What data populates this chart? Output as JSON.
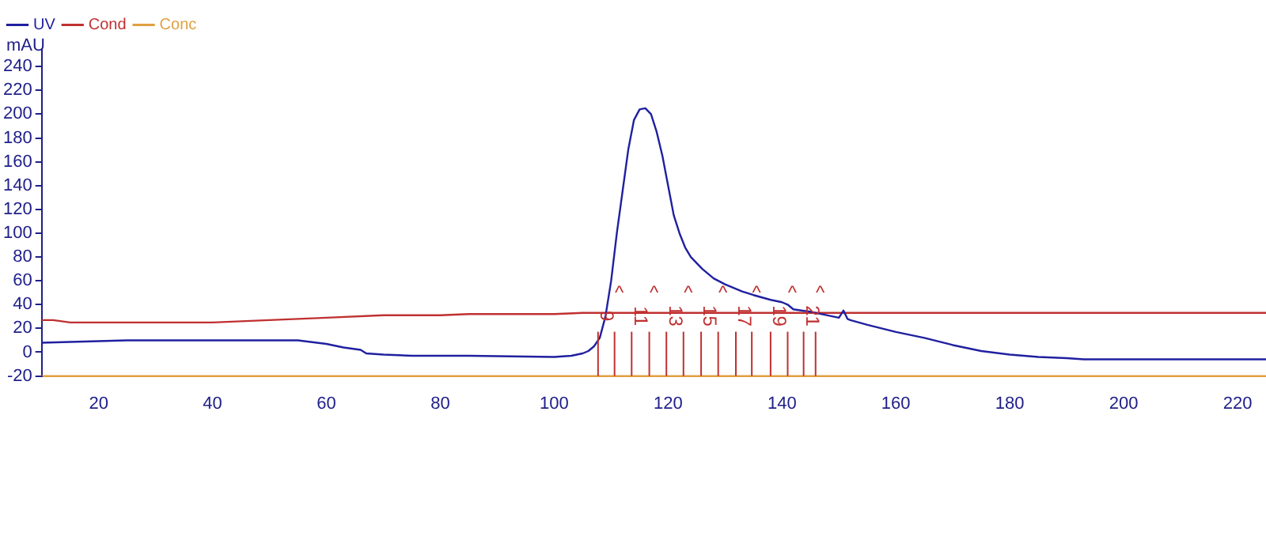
{
  "chart_data": {
    "type": "line",
    "ylabel": "mAU",
    "xlim": [
      10,
      225
    ],
    "ylim": [
      -20,
      255
    ],
    "xticks": [
      20,
      40,
      60,
      80,
      100,
      120,
      140,
      160,
      180,
      200,
      220
    ],
    "yticks": [
      -20,
      0,
      20,
      40,
      60,
      80,
      100,
      120,
      140,
      160,
      180,
      200,
      220,
      240
    ],
    "grid": false,
    "legend": "top left",
    "marker": "none",
    "line_style": "solid",
    "series": [
      {
        "name": "UV",
        "color": "#2020a0",
        "x": [
          10,
          25,
          50,
          55,
          60,
          63,
          66,
          67,
          70,
          75,
          85,
          100,
          103,
          105,
          106,
          107,
          108,
          109,
          110,
          111,
          112,
          113,
          114,
          115,
          116,
          117,
          118,
          119,
          120,
          121,
          122,
          123,
          124,
          126,
          128,
          130,
          133,
          135,
          138,
          140,
          141,
          142,
          145,
          148,
          150,
          150.8,
          151.5,
          152,
          155,
          160,
          165,
          170,
          175,
          180,
          185,
          190,
          193,
          200,
          225
        ],
        "values": [
          8,
          10,
          10,
          10,
          7,
          4,
          2,
          -1,
          -2,
          -3,
          -3,
          -4,
          -3,
          -1,
          1,
          5,
          12,
          30,
          60,
          100,
          135,
          170,
          195,
          204,
          205,
          200,
          185,
          165,
          140,
          115,
          100,
          88,
          80,
          70,
          62,
          57,
          51,
          48,
          44,
          42,
          40,
          36,
          34,
          31,
          29,
          35,
          28,
          27,
          23,
          17,
          12,
          6,
          1,
          -2,
          -4,
          -5,
          -6,
          -6,
          -6
        ]
      },
      {
        "name": "Cond",
        "color": "#c03030",
        "x": [
          10,
          12,
          15,
          40,
          45,
          50,
          55,
          60,
          70,
          80,
          85,
          100,
          105,
          107,
          225
        ],
        "values": [
          27,
          27,
          25,
          25,
          26,
          27,
          28,
          29,
          31,
          31,
          32,
          32,
          33,
          33,
          33
        ]
      },
      {
        "name": "Conc",
        "color": "#e0a040",
        "x": [
          10,
          225
        ],
        "values": [
          -20,
          -20
        ]
      }
    ],
    "ref_lines": [
      {
        "axis": "x",
        "value": 107.7,
        "color": "#c03030"
      },
      {
        "axis": "x",
        "value": 110.6,
        "color": "#c03030"
      },
      {
        "axis": "x",
        "value": 113.6,
        "color": "#c03030"
      },
      {
        "axis": "x",
        "value": 116.7,
        "color": "#c03030"
      },
      {
        "axis": "x",
        "value": 119.7,
        "color": "#c03030"
      },
      {
        "axis": "x",
        "value": 122.7,
        "color": "#c03030"
      },
      {
        "axis": "x",
        "value": 125.8,
        "color": "#c03030"
      },
      {
        "axis": "x",
        "value": 128.8,
        "color": "#c03030"
      },
      {
        "axis": "x",
        "value": 131.9,
        "color": "#c03030"
      },
      {
        "axis": "x",
        "value": 134.7,
        "color": "#c03030"
      },
      {
        "axis": "x",
        "value": 138.0,
        "color": "#c03030"
      },
      {
        "axis": "x",
        "value": 141.0,
        "color": "#c03030"
      },
      {
        "axis": "x",
        "value": 143.8,
        "color": "#c03030"
      },
      {
        "axis": "x",
        "value": 145.9,
        "color": "#c03030"
      }
    ],
    "annotations": [
      {
        "text": "9",
        "x": 107.7
      },
      {
        "text": "11",
        "x": 113.6
      },
      {
        "text": "13",
        "x": 119.7
      },
      {
        "text": "15",
        "x": 125.8
      },
      {
        "text": "17",
        "x": 131.9
      },
      {
        "text": "19",
        "x": 138.0
      },
      {
        "text": "21",
        "x": 143.8
      },
      "^",
      "^",
      "^",
      "^",
      "^",
      "^",
      "^"
    ]
  }
}
